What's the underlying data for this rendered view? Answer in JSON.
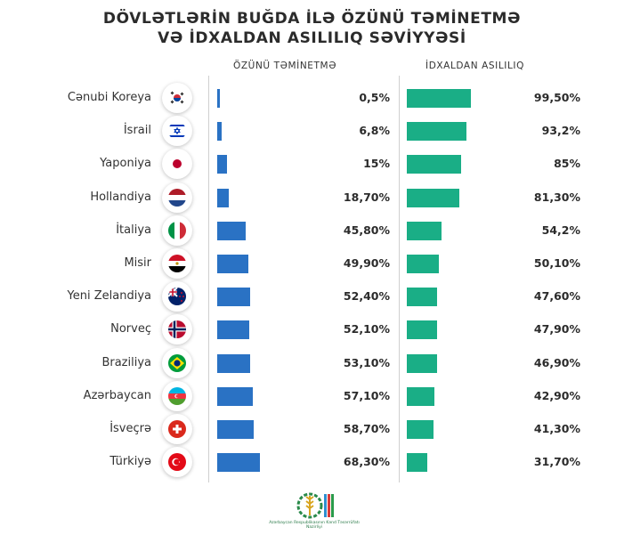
{
  "title_line1": "DÖVLƏTLƏRİN BUĞDA İLƏ ÖZÜNÜ TƏMİNETMƏ",
  "title_line2": "VƏ İDXALDAN ASILILIQ SƏVİYYƏSİ",
  "colors": {
    "self": "#2a72c4",
    "import": "#1aae86"
  },
  "logo_text": "Azərbaycan Respublikasının Kənd Təsərrüfatı Nazirliyi",
  "chart_data": {
    "type": "bar",
    "orientation": "horizontal",
    "categories": [
      "Cənubi Koreya",
      "İsrail",
      "Yaponiya",
      "Hollandiya",
      "İtaliya",
      "Misir",
      "Yeni Zelandiya",
      "Norveç",
      "Braziliya",
      "Azərbaycan",
      "İsveçrə",
      "Türkiyə"
    ],
    "flags": [
      "south-korea-flag-icon",
      "israel-flag-icon",
      "japan-flag-icon",
      "netherlands-flag-icon",
      "italy-flag-icon",
      "egypt-flag-icon",
      "new-zealand-flag-icon",
      "norway-flag-icon",
      "brazil-flag-icon",
      "azerbaijan-flag-icon",
      "switzerland-flag-icon",
      "turkey-flag-icon"
    ],
    "series": [
      {
        "name": "ÖZÜNÜ TƏMİNETMƏ",
        "values": [
          0.5,
          6.8,
          15,
          18.7,
          45.8,
          49.9,
          52.4,
          52.1,
          53.1,
          57.1,
          58.7,
          68.3
        ],
        "labels": [
          "0,5%",
          "6,8%",
          "15%",
          "18,70%",
          "45,80%",
          "49,90%",
          "52,40%",
          "52,10%",
          "53,10%",
          "57,10%",
          "58,70%",
          "68,30%"
        ]
      },
      {
        "name": "İDXALDAN ASILILIQ",
        "values": [
          99.5,
          93.2,
          85,
          81.3,
          54.2,
          50.1,
          47.6,
          47.9,
          46.9,
          42.9,
          41.3,
          31.7
        ],
        "labels": [
          "99,50%",
          "93,2%",
          "85%",
          "81,30%",
          "54,2%",
          "50,10%",
          "47,60%",
          "47,90%",
          "46,90%",
          "42,90%",
          "41,30%",
          "31,70%"
        ]
      }
    ],
    "title": "DÖVLƏTLƏRİN BUĞDA İLƏ ÖZÜNÜ TƏMİNETMƏ VƏ İDXALDAN ASILILIQ SƏVİYYƏSİ",
    "xlabel": "",
    "ylabel": "",
    "xlim": [
      0,
      100
    ],
    "grid": false
  }
}
